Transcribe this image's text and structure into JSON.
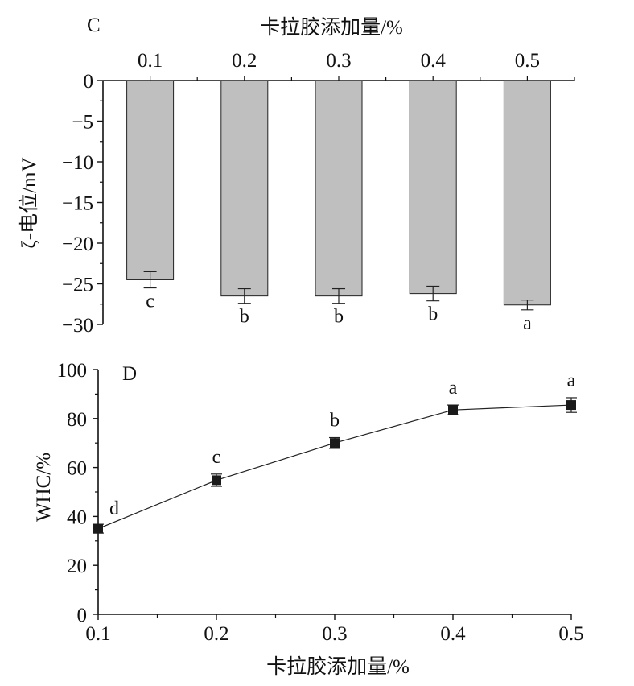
{
  "chart_data": [
    {
      "panel": "C",
      "type": "bar",
      "xlabel": "卡拉胶添加量/%",
      "ylabel": "ζ-电位/mV",
      "categories": [
        "0.1",
        "0.2",
        "0.3",
        "0.4",
        "0.5"
      ],
      "values": [
        -24.5,
        -26.5,
        -26.5,
        -26.2,
        -27.6
      ],
      "errors": [
        1.0,
        0.9,
        0.9,
        0.9,
        0.6
      ],
      "significance": [
        "c",
        "b",
        "b",
        "b",
        "a"
      ],
      "ylim": [
        -30,
        0
      ],
      "yticks": [
        "0",
        "−5",
        "−10",
        "−15",
        "−20",
        "−25",
        "−30"
      ],
      "x_axis_position": "top",
      "bar_color": "#bfbfbf"
    },
    {
      "panel": "D",
      "type": "line",
      "xlabel": "卡拉胶添加量/%",
      "ylabel": "WHC/%",
      "x": [
        0.1,
        0.2,
        0.3,
        0.4,
        0.5
      ],
      "y": [
        35,
        54.8,
        70,
        83.5,
        85.5
      ],
      "errors": [
        1.8,
        2.5,
        2.2,
        2.0,
        3.0
      ],
      "significance": [
        "d",
        "c",
        "b",
        "a",
        "a"
      ],
      "xlim": [
        0.1,
        0.5
      ],
      "ylim": [
        0,
        100
      ],
      "xticks": [
        "0.1",
        "0.2",
        "0.3",
        "0.4",
        "0.5"
      ],
      "yticks": [
        "0",
        "20",
        "40",
        "60",
        "80",
        "100"
      ],
      "marker": "square"
    }
  ]
}
